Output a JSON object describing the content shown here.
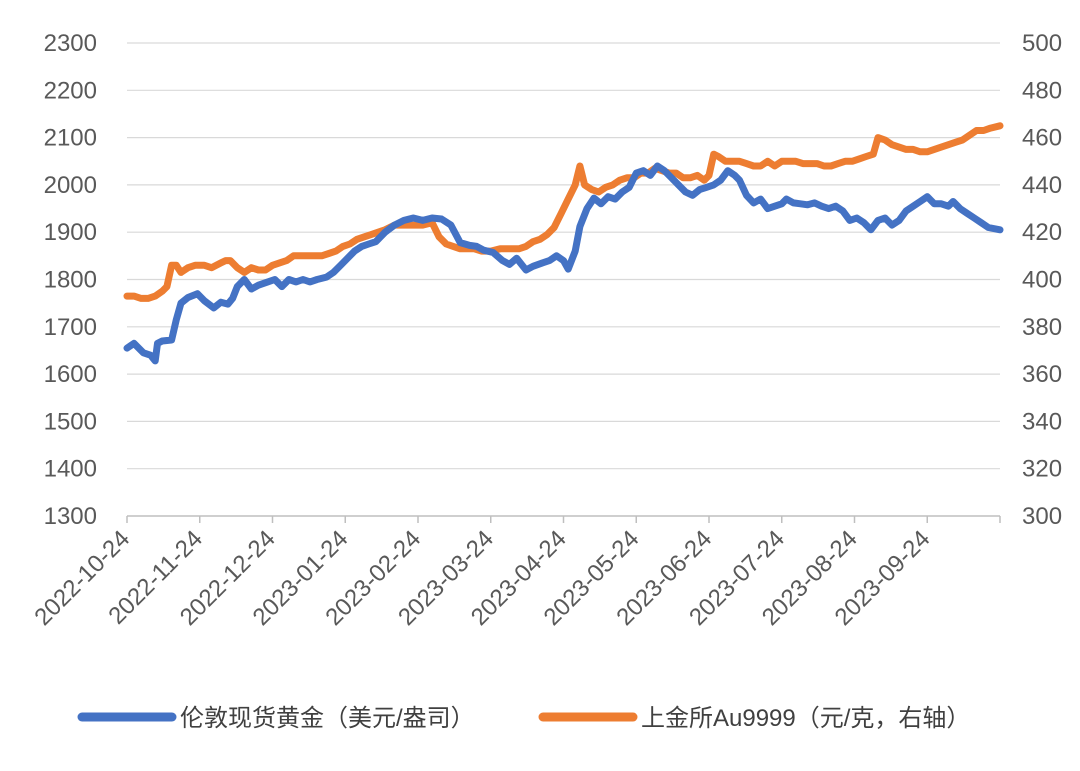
{
  "chart_data": {
    "type": "line",
    "title": "",
    "grid": true,
    "legend_position": "bottom",
    "x_tick_labels": [
      "2022-10-24",
      "2022-11-24",
      "2022-12-24",
      "2023-01-24",
      "2023-02-24",
      "2023-03-24",
      "2023-04-24",
      "2023-05-24",
      "2023-06-24",
      "2023-07-24",
      "2023-08-24",
      "2023-09-24"
    ],
    "x_range": [
      0,
      372
    ],
    "y_left": {
      "ylim": [
        1300,
        2300
      ],
      "ticks": [
        "1300",
        "1400",
        "1500",
        "1600",
        "1700",
        "1800",
        "1900",
        "2000",
        "2100",
        "2200",
        "2300"
      ]
    },
    "y_right": {
      "ylim": [
        300,
        500
      ],
      "ticks": [
        "300",
        "320",
        "340",
        "360",
        "380",
        "400",
        "420",
        "440",
        "460",
        "480",
        "500"
      ]
    },
    "series": [
      {
        "name": "伦敦现货黄金（美元/盎司）",
        "axis": "left",
        "color": "#4472C4",
        "points": [
          [
            0,
            1655
          ],
          [
            3,
            1665
          ],
          [
            7,
            1645
          ],
          [
            10,
            1640
          ],
          [
            12,
            1628
          ],
          [
            13,
            1665
          ],
          [
            15,
            1670
          ],
          [
            19,
            1672
          ],
          [
            21,
            1715
          ],
          [
            23,
            1750
          ],
          [
            26,
            1762
          ],
          [
            30,
            1770
          ],
          [
            33,
            1755
          ],
          [
            37,
            1740
          ],
          [
            40,
            1752
          ],
          [
            43,
            1748
          ],
          [
            45,
            1760
          ],
          [
            47,
            1785
          ],
          [
            50,
            1800
          ],
          [
            53,
            1780
          ],
          [
            56,
            1788
          ],
          [
            60,
            1795
          ],
          [
            63,
            1800
          ],
          [
            66,
            1785
          ],
          [
            69,
            1800
          ],
          [
            72,
            1795
          ],
          [
            75,
            1800
          ],
          [
            78,
            1795
          ],
          [
            81,
            1800
          ],
          [
            85,
            1805
          ],
          [
            88,
            1815
          ],
          [
            91,
            1830
          ],
          [
            94,
            1845
          ],
          [
            97,
            1860
          ],
          [
            100,
            1870
          ],
          [
            103,
            1875
          ],
          [
            106,
            1880
          ],
          [
            110,
            1900
          ],
          [
            114,
            1915
          ],
          [
            118,
            1925
          ],
          [
            122,
            1930
          ],
          [
            126,
            1925
          ],
          [
            130,
            1930
          ],
          [
            134,
            1928
          ],
          [
            138,
            1915
          ],
          [
            142,
            1878
          ],
          [
            146,
            1872
          ],
          [
            149,
            1870
          ],
          [
            152,
            1862
          ],
          [
            156,
            1857
          ],
          [
            160,
            1840
          ],
          [
            163,
            1832
          ],
          [
            166,
            1845
          ],
          [
            170,
            1820
          ],
          [
            173,
            1828
          ],
          [
            177,
            1835
          ],
          [
            180,
            1840
          ],
          [
            183,
            1850
          ],
          [
            186,
            1840
          ],
          [
            188,
            1822
          ],
          [
            191,
            1860
          ],
          [
            193,
            1912
          ],
          [
            196,
            1950
          ],
          [
            199,
            1972
          ],
          [
            202,
            1960
          ],
          [
            205,
            1975
          ],
          [
            208,
            1970
          ],
          [
            211,
            1985
          ],
          [
            214,
            1995
          ],
          [
            217,
            2025
          ],
          [
            220,
            2030
          ],
          [
            223,
            2020
          ],
          [
            226,
            2040
          ],
          [
            229,
            2030
          ],
          [
            232,
            2015
          ],
          [
            235,
            2000
          ],
          [
            238,
            1985
          ],
          [
            241,
            1978
          ],
          [
            244,
            1990
          ],
          [
            247,
            1995
          ],
          [
            250,
            2000
          ],
          [
            253,
            2010
          ],
          [
            256,
            2030
          ],
          [
            259,
            2020
          ],
          [
            261,
            2010
          ],
          [
            264,
            1978
          ],
          [
            267,
            1962
          ],
          [
            270,
            1970
          ],
          [
            273,
            1950
          ],
          [
            276,
            1955
          ],
          [
            279,
            1960
          ],
          [
            281,
            1970
          ],
          [
            284,
            1962
          ],
          [
            287,
            1960
          ],
          [
            290,
            1958
          ],
          [
            293,
            1962
          ],
          [
            296,
            1955
          ],
          [
            299,
            1950
          ],
          [
            302,
            1955
          ],
          [
            305,
            1945
          ],
          [
            308,
            1925
          ],
          [
            311,
            1930
          ],
          [
            314,
            1920
          ],
          [
            317,
            1905
          ],
          [
            320,
            1925
          ],
          [
            323,
            1930
          ],
          [
            326,
            1915
          ],
          [
            329,
            1925
          ],
          [
            332,
            1945
          ],
          [
            335,
            1955
          ],
          [
            338,
            1965
          ],
          [
            341,
            1975
          ],
          [
            344,
            1960
          ],
          [
            347,
            1960
          ],
          [
            350,
            1955
          ],
          [
            352,
            1965
          ],
          [
            355,
            1950
          ],
          [
            358,
            1940
          ],
          [
            361,
            1930
          ],
          [
            364,
            1920
          ],
          [
            367,
            1910
          ],
          [
            372,
            1905
          ]
        ]
      },
      {
        "name": "上金所Au9999（元/克，右轴）",
        "axis": "right",
        "color": "#ED7D31",
        "points": [
          [
            0,
            393
          ],
          [
            3,
            393
          ],
          [
            6,
            392
          ],
          [
            9,
            392
          ],
          [
            12,
            393
          ],
          [
            15,
            395
          ],
          [
            17,
            397
          ],
          [
            19,
            406
          ],
          [
            21,
            406
          ],
          [
            23,
            403
          ],
          [
            26,
            405
          ],
          [
            29,
            406
          ],
          [
            33,
            406
          ],
          [
            36,
            405
          ],
          [
            40,
            407
          ],
          [
            42,
            408
          ],
          [
            44,
            408
          ],
          [
            47,
            405
          ],
          [
            50,
            403
          ],
          [
            53,
            405
          ],
          [
            56,
            404
          ],
          [
            59,
            404
          ],
          [
            62,
            406
          ],
          [
            65,
            407
          ],
          [
            68,
            408
          ],
          [
            71,
            410
          ],
          [
            74,
            410
          ],
          [
            77,
            410
          ],
          [
            80,
            410
          ],
          [
            83,
            410
          ],
          [
            86,
            411
          ],
          [
            89,
            412
          ],
          [
            92,
            414
          ],
          [
            95,
            415
          ],
          [
            98,
            417
          ],
          [
            101,
            418
          ],
          [
            104,
            419
          ],
          [
            107,
            420
          ],
          [
            110,
            421
          ],
          [
            114,
            423
          ],
          [
            118,
            423
          ],
          [
            122,
            423
          ],
          [
            126,
            423
          ],
          [
            130,
            424
          ],
          [
            133,
            418
          ],
          [
            136,
            415
          ],
          [
            139,
            414
          ],
          [
            142,
            413
          ],
          [
            145,
            413
          ],
          [
            148,
            413
          ],
          [
            151,
            412
          ],
          [
            155,
            412
          ],
          [
            159,
            413
          ],
          [
            163,
            413
          ],
          [
            167,
            413
          ],
          [
            170,
            414
          ],
          [
            173,
            416
          ],
          [
            176,
            417
          ],
          [
            179,
            419
          ],
          [
            182,
            422
          ],
          [
            185,
            428
          ],
          [
            188,
            434
          ],
          [
            191,
            440
          ],
          [
            193,
            448
          ],
          [
            195,
            440
          ],
          [
            198,
            438
          ],
          [
            201,
            437
          ],
          [
            204,
            439
          ],
          [
            207,
            440
          ],
          [
            210,
            442
          ],
          [
            213,
            443
          ],
          [
            216,
            443
          ],
          [
            219,
            445
          ],
          [
            222,
            445
          ],
          [
            225,
            447
          ],
          [
            228,
            446
          ],
          [
            231,
            445
          ],
          [
            234,
            445
          ],
          [
            237,
            443
          ],
          [
            240,
            443
          ],
          [
            243,
            444
          ],
          [
            246,
            442
          ],
          [
            248,
            444
          ],
          [
            250,
            453
          ],
          [
            252,
            452
          ],
          [
            255,
            450
          ],
          [
            258,
            450
          ],
          [
            261,
            450
          ],
          [
            264,
            449
          ],
          [
            267,
            448
          ],
          [
            270,
            448
          ],
          [
            273,
            450
          ],
          [
            276,
            448
          ],
          [
            279,
            450
          ],
          [
            282,
            450
          ],
          [
            285,
            450
          ],
          [
            288,
            449
          ],
          [
            291,
            449
          ],
          [
            294,
            449
          ],
          [
            297,
            448
          ],
          [
            300,
            448
          ],
          [
            303,
            449
          ],
          [
            306,
            450
          ],
          [
            309,
            450
          ],
          [
            312,
            451
          ],
          [
            315,
            452
          ],
          [
            318,
            453
          ],
          [
            320,
            460
          ],
          [
            323,
            459
          ],
          [
            326,
            457
          ],
          [
            329,
            456
          ],
          [
            332,
            455
          ],
          [
            335,
            455
          ],
          [
            338,
            454
          ],
          [
            341,
            454
          ],
          [
            344,
            455
          ],
          [
            347,
            456
          ],
          [
            350,
            457
          ],
          [
            353,
            458
          ],
          [
            356,
            459
          ],
          [
            359,
            461
          ],
          [
            362,
            463
          ],
          [
            365,
            463
          ],
          [
            368,
            464
          ],
          [
            372,
            465
          ]
        ]
      }
    ]
  },
  "legend": {
    "item1_label": "伦敦现货黄金（美元/盎司）",
    "item2_label": "上金所Au9999（元/克，右轴）"
  }
}
